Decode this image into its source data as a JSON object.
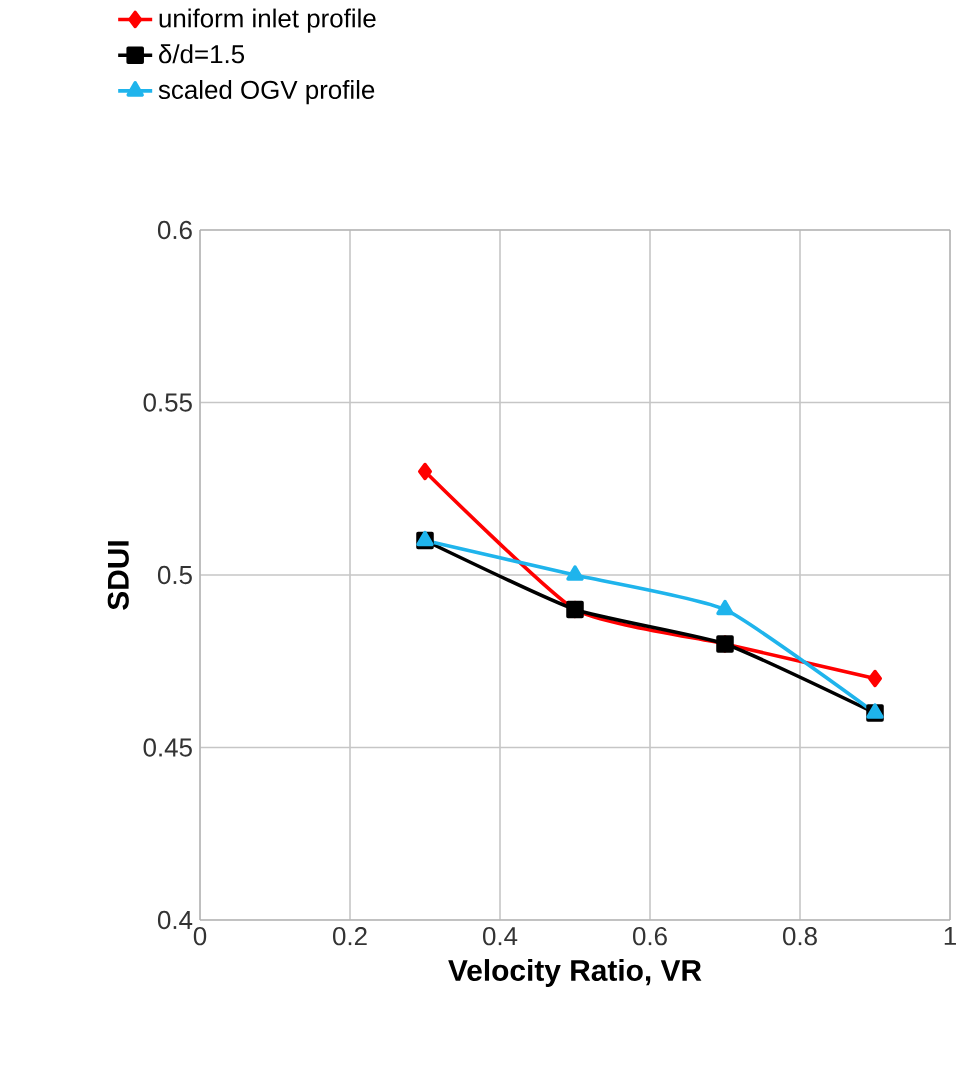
{
  "chart_data": {
    "type": "line",
    "xlabel": "Velocity Ratio, VR",
    "ylabel": "SDUI",
    "x": [
      0.3,
      0.5,
      0.7,
      0.9
    ],
    "series": [
      {
        "name": "uniform inlet profile",
        "color": "#ff0000",
        "marker": "diamond",
        "values": [
          0.53,
          0.49,
          0.48,
          0.47
        ]
      },
      {
        "name": "δ/d=1.5",
        "color": "#000000",
        "marker": "square",
        "values": [
          0.51,
          0.49,
          0.48,
          0.46
        ]
      },
      {
        "name": "scaled  OGV profile",
        "color": "#1fb4ec",
        "marker": "triangle",
        "values": [
          0.51,
          0.5,
          0.49,
          0.46
        ]
      }
    ],
    "xlim": [
      0,
      1
    ],
    "xticks": [
      0,
      0.2,
      0.4,
      0.6,
      0.8,
      1
    ],
    "ylim": [
      0.4,
      0.6
    ],
    "yticks": [
      0.4,
      0.45,
      0.5,
      0.55,
      0.6
    ],
    "grid": true,
    "legend": "top",
    "line_style": "solid"
  }
}
